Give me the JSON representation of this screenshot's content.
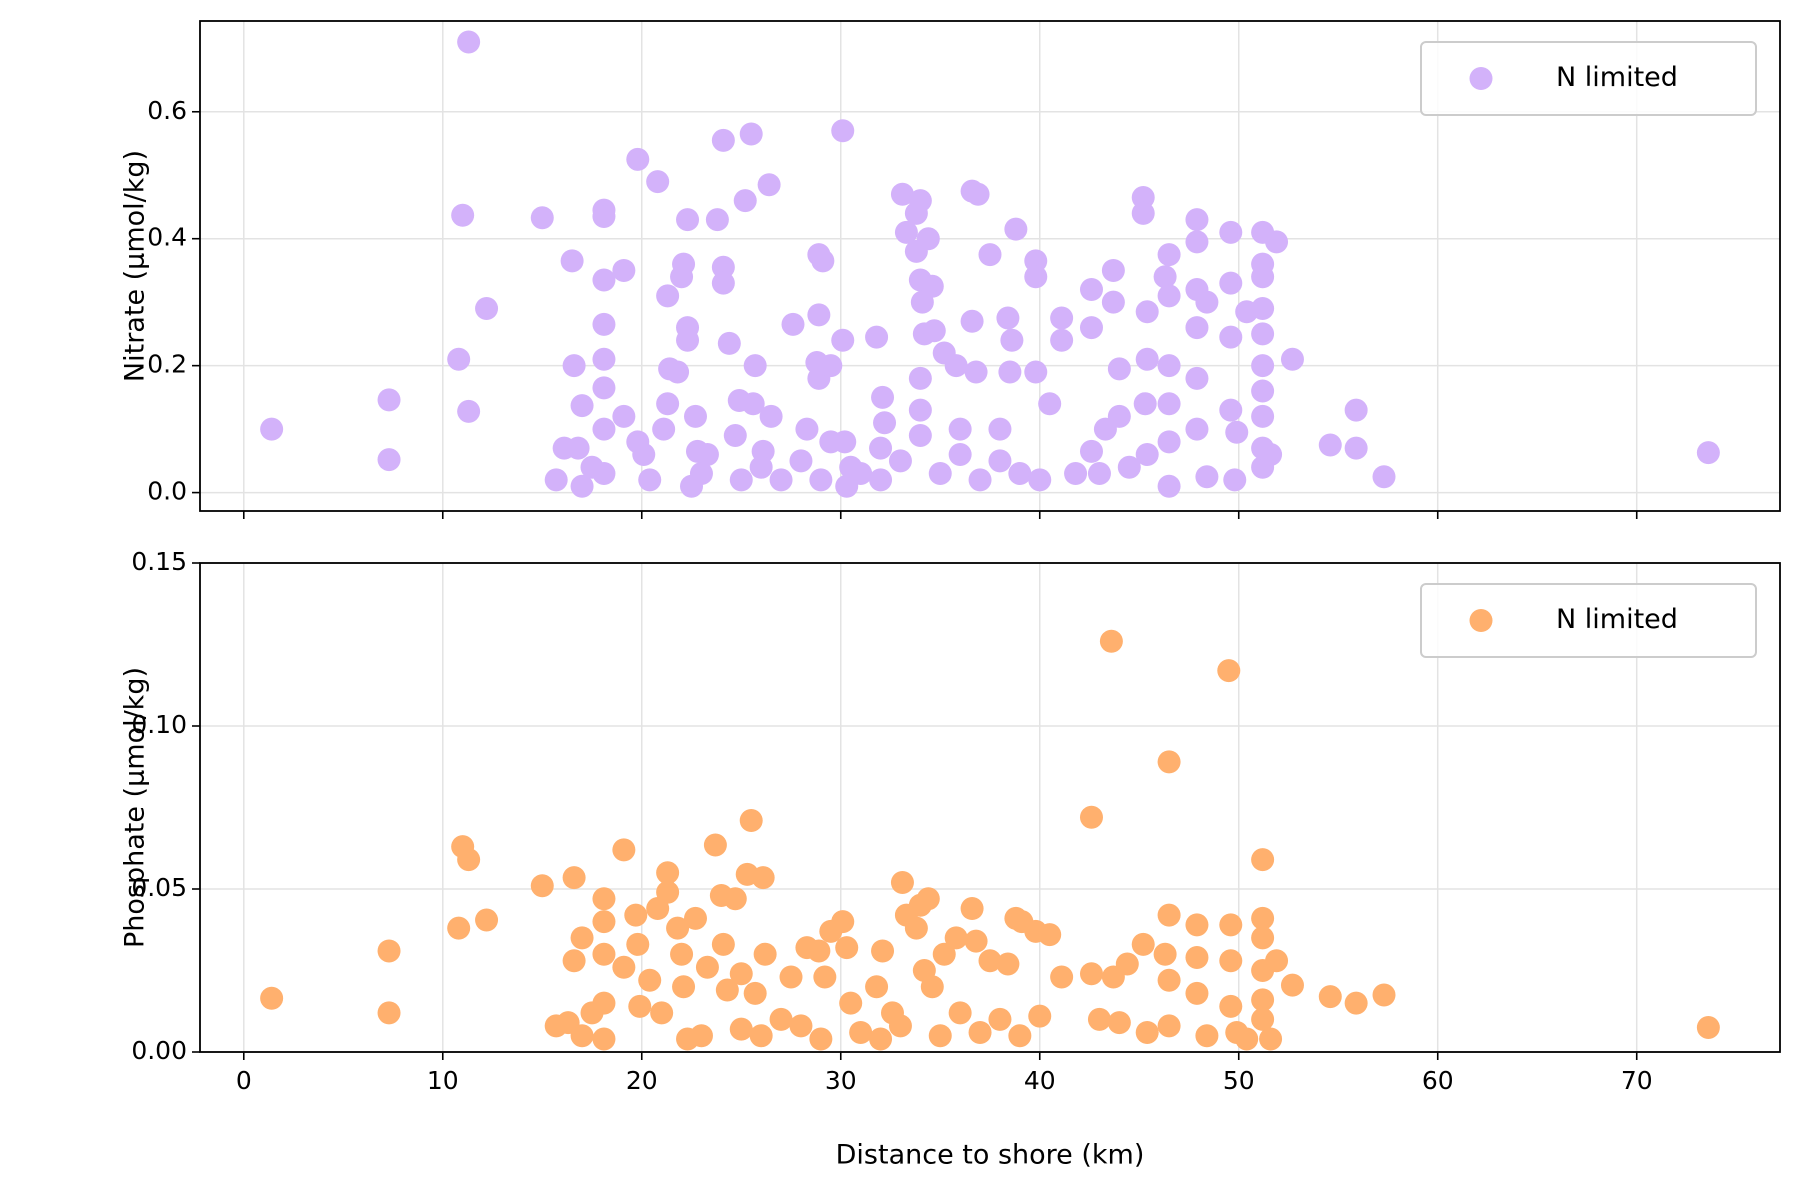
{
  "chart_data": [
    {
      "type": "scatter",
      "ylabel": "Nitrate (µmol/kg)",
      "xlim": [
        -2.2,
        77.2
      ],
      "ylim": [
        -0.029,
        0.743
      ],
      "xticks": [
        0,
        10,
        20,
        30,
        40,
        50,
        60,
        70
      ],
      "show_xticklabels": false,
      "yticks": [
        {
          "value": 0,
          "label": "0.0"
        },
        0.2,
        0.4,
        0.6
      ],
      "grid": true,
      "legend": "upper right",
      "series": [
        {
          "name": "N limited",
          "color": "#d3b2fa",
          "x": [
            1.4,
            7.3,
            7.3,
            10.8,
            11.0,
            11.3,
            11.3,
            12.2,
            15.0,
            15.7,
            16.1,
            16.5,
            16.6,
            16.8,
            17.0,
            17.0,
            17.5,
            18.1,
            18.1,
            18.1,
            18.1,
            18.1,
            18.1,
            18.1,
            18.1,
            19.1,
            19.1,
            19.8,
            19.8,
            20.1,
            20.4,
            20.8,
            21.1,
            21.3,
            21.3,
            21.4,
            21.8,
            22.0,
            22.1,
            22.3,
            22.3,
            22.3,
            22.5,
            22.7,
            22.8,
            23.3,
            23.8,
            24.1,
            24.1,
            24.1,
            24.4,
            24.7,
            24.9,
            25.2,
            25.5,
            25.6,
            25.7,
            26.1,
            26.4,
            26.5,
            27.6,
            28.3,
            28.9,
            28.9,
            29.1,
            28.8,
            28.9,
            29.5,
            29.5,
            30.1,
            30.1,
            30.2,
            30.3,
            31.8,
            32.1,
            32.2,
            33.1,
            33.3,
            33.8,
            33.8,
            34.0,
            34.0,
            34.1,
            34.2,
            34.0,
            34.0,
            34.4,
            34.6,
            34.7,
            35.2,
            35.8,
            36.6,
            36.9,
            36.6,
            36.8,
            37.5,
            38.4,
            38.6,
            38.5,
            38.8,
            39.8,
            39.8,
            39.8,
            40.5,
            41.1,
            41.1,
            42.6,
            42.6,
            42.6,
            43.0,
            43.3,
            43.7,
            43.7,
            44.0,
            44.0,
            45.2,
            45.2,
            45.4,
            45.4,
            45.3,
            45.4,
            46.3,
            46.5,
            46.5,
            46.5,
            46.5,
            46.5,
            46.5,
            47.9,
            47.9,
            47.9,
            47.9,
            47.9,
            47.9,
            48.4,
            48.4,
            49.6,
            49.6,
            49.6,
            49.6,
            49.9,
            49.8,
            50.4,
            51.2,
            51.2,
            51.2,
            51.2,
            51.2,
            51.2,
            51.2,
            51.2,
            51.2,
            51.2,
            51.6,
            51.9,
            52.7,
            54.6,
            55.9,
            55.9,
            57.3,
            73.6,
            23.0,
            25.0,
            26.0,
            27.0,
            28.0,
            29.0,
            30.5,
            31.0,
            32.0,
            33.0,
            35.0,
            36.0,
            37.0,
            38.0,
            39.0,
            40.0,
            36.0,
            38.0,
            34.0,
            32.0,
            41.8,
            44.5
          ],
          "values": [
            0.1,
            0.146,
            0.052,
            0.21,
            0.437,
            0.71,
            0.128,
            0.29,
            0.433,
            0.02,
            0.07,
            0.365,
            0.2,
            0.07,
            0.137,
            0.01,
            0.04,
            0.445,
            0.435,
            0.335,
            0.265,
            0.21,
            0.165,
            0.1,
            0.03,
            0.35,
            0.12,
            0.525,
            0.08,
            0.06,
            0.02,
            0.49,
            0.1,
            0.31,
            0.14,
            0.195,
            0.19,
            0.34,
            0.36,
            0.26,
            0.24,
            0.43,
            0.01,
            0.12,
            0.065,
            0.06,
            0.43,
            0.555,
            0.355,
            0.33,
            0.235,
            0.09,
            0.145,
            0.46,
            0.565,
            0.14,
            0.2,
            0.065,
            0.485,
            0.12,
            0.265,
            0.1,
            0.28,
            0.375,
            0.365,
            0.205,
            0.18,
            0.2,
            0.08,
            0.57,
            0.24,
            0.08,
            0.01,
            0.245,
            0.15,
            0.11,
            0.47,
            0.41,
            0.44,
            0.38,
            0.46,
            0.335,
            0.3,
            0.25,
            0.18,
            0.13,
            0.4,
            0.325,
            0.255,
            0.22,
            0.2,
            0.475,
            0.47,
            0.27,
            0.19,
            0.375,
            0.275,
            0.24,
            0.19,
            0.415,
            0.365,
            0.34,
            0.19,
            0.14,
            0.275,
            0.24,
            0.32,
            0.26,
            0.065,
            0.03,
            0.1,
            0.35,
            0.3,
            0.195,
            0.12,
            0.465,
            0.44,
            0.285,
            0.21,
            0.14,
            0.06,
            0.34,
            0.375,
            0.31,
            0.2,
            0.14,
            0.08,
            0.01,
            0.43,
            0.395,
            0.32,
            0.26,
            0.18,
            0.1,
            0.3,
            0.025,
            0.41,
            0.33,
            0.245,
            0.13,
            0.095,
            0.02,
            0.285,
            0.41,
            0.36,
            0.34,
            0.29,
            0.25,
            0.2,
            0.16,
            0.12,
            0.07,
            0.04,
            0.06,
            0.395,
            0.21,
            0.075,
            0.13,
            0.07,
            0.025,
            0.063,
            0.03,
            0.02,
            0.04,
            0.02,
            0.05,
            0.02,
            0.04,
            0.03,
            0.02,
            0.05,
            0.03,
            0.06,
            0.02,
            0.05,
            0.03,
            0.02,
            0.1,
            0.1,
            0.09,
            0.07,
            0.03,
            0.04
          ]
        }
      ]
    },
    {
      "type": "scatter",
      "xlabel": "Distance to shore (km)",
      "ylabel": "Phosphate (µmol/kg)",
      "xlim": [
        -2.2,
        77.2
      ],
      "ylim": [
        0,
        0.15
      ],
      "xticks": [
        0,
        10,
        20,
        30,
        40,
        50,
        60,
        70
      ],
      "show_xticklabels": true,
      "yticks": [
        {
          "value": 0,
          "label": "0.00"
        },
        0.05,
        {
          "value": 0.1,
          "label": "0.10"
        },
        0.15
      ],
      "grid": true,
      "legend": "upper right",
      "series": [
        {
          "name": "N limited",
          "color": "#ffb06e",
          "x": [
            1.4,
            7.3,
            7.3,
            10.8,
            11.0,
            11.3,
            12.2,
            15.0,
            15.7,
            16.3,
            16.6,
            16.6,
            17.0,
            17.0,
            17.5,
            18.1,
            18.1,
            18.1,
            18.1,
            18.1,
            19.1,
            19.1,
            19.7,
            19.8,
            19.9,
            20.4,
            20.8,
            21.0,
            21.3,
            21.3,
            21.8,
            22.0,
            22.1,
            22.3,
            22.7,
            23.3,
            23.7,
            24.0,
            24.1,
            24.3,
            24.7,
            25.0,
            25.3,
            25.5,
            25.7,
            26.1,
            26.2,
            27.5,
            28.3,
            28.9,
            29.2,
            29.5,
            30.1,
            30.3,
            30.5,
            31.8,
            32.1,
            32.6,
            33.1,
            33.3,
            33.8,
            34.0,
            34.2,
            34.4,
            34.6,
            35.2,
            35.8,
            36.6,
            36.8,
            37.5,
            38.4,
            38.8,
            39.1,
            39.8,
            40.0,
            40.5,
            41.1,
            42.6,
            42.6,
            43.0,
            43.6,
            43.7,
            44.0,
            44.4,
            45.2,
            45.4,
            46.3,
            46.5,
            46.5,
            46.5,
            46.5,
            47.9,
            47.9,
            47.9,
            48.4,
            49.5,
            49.6,
            49.6,
            49.6,
            49.9,
            50.4,
            51.2,
            51.2,
            51.2,
            51.2,
            51.2,
            51.2,
            51.6,
            51.9,
            52.7,
            54.6,
            55.9,
            57.3,
            73.6,
            26.0,
            28.0,
            29.0,
            31.0,
            32.0,
            33.0,
            35.0,
            36.0,
            37.0,
            38.0,
            39.0,
            27.0,
            23.0,
            25.0
          ],
          "values": [
            0.0165,
            0.031,
            0.012,
            0.038,
            0.063,
            0.059,
            0.0405,
            0.051,
            0.008,
            0.009,
            0.028,
            0.0535,
            0.035,
            0.005,
            0.012,
            0.047,
            0.04,
            0.03,
            0.015,
            0.004,
            0.062,
            0.026,
            0.042,
            0.033,
            0.014,
            0.022,
            0.044,
            0.012,
            0.055,
            0.049,
            0.038,
            0.03,
            0.02,
            0.004,
            0.041,
            0.026,
            0.0635,
            0.048,
            0.033,
            0.019,
            0.047,
            0.024,
            0.0545,
            0.071,
            0.018,
            0.0535,
            0.03,
            0.023,
            0.032,
            0.031,
            0.023,
            0.037,
            0.04,
            0.032,
            0.015,
            0.02,
            0.031,
            0.012,
            0.052,
            0.042,
            0.038,
            0.045,
            0.025,
            0.047,
            0.02,
            0.03,
            0.035,
            0.044,
            0.034,
            0.028,
            0.027,
            0.041,
            0.04,
            0.037,
            0.011,
            0.036,
            0.023,
            0.072,
            0.024,
            0.01,
            0.126,
            0.023,
            0.009,
            0.027,
            0.033,
            0.006,
            0.03,
            0.089,
            0.042,
            0.022,
            0.008,
            0.039,
            0.029,
            0.018,
            0.005,
            0.117,
            0.039,
            0.028,
            0.014,
            0.006,
            0.004,
            0.059,
            0.041,
            0.035,
            0.025,
            0.016,
            0.01,
            0.004,
            0.028,
            0.0205,
            0.017,
            0.015,
            0.0175,
            0.0075,
            0.005,
            0.008,
            0.004,
            0.006,
            0.004,
            0.008,
            0.005,
            0.012,
            0.006,
            0.01,
            0.005,
            0.01,
            0.005,
            0.007
          ]
        }
      ]
    }
  ]
}
